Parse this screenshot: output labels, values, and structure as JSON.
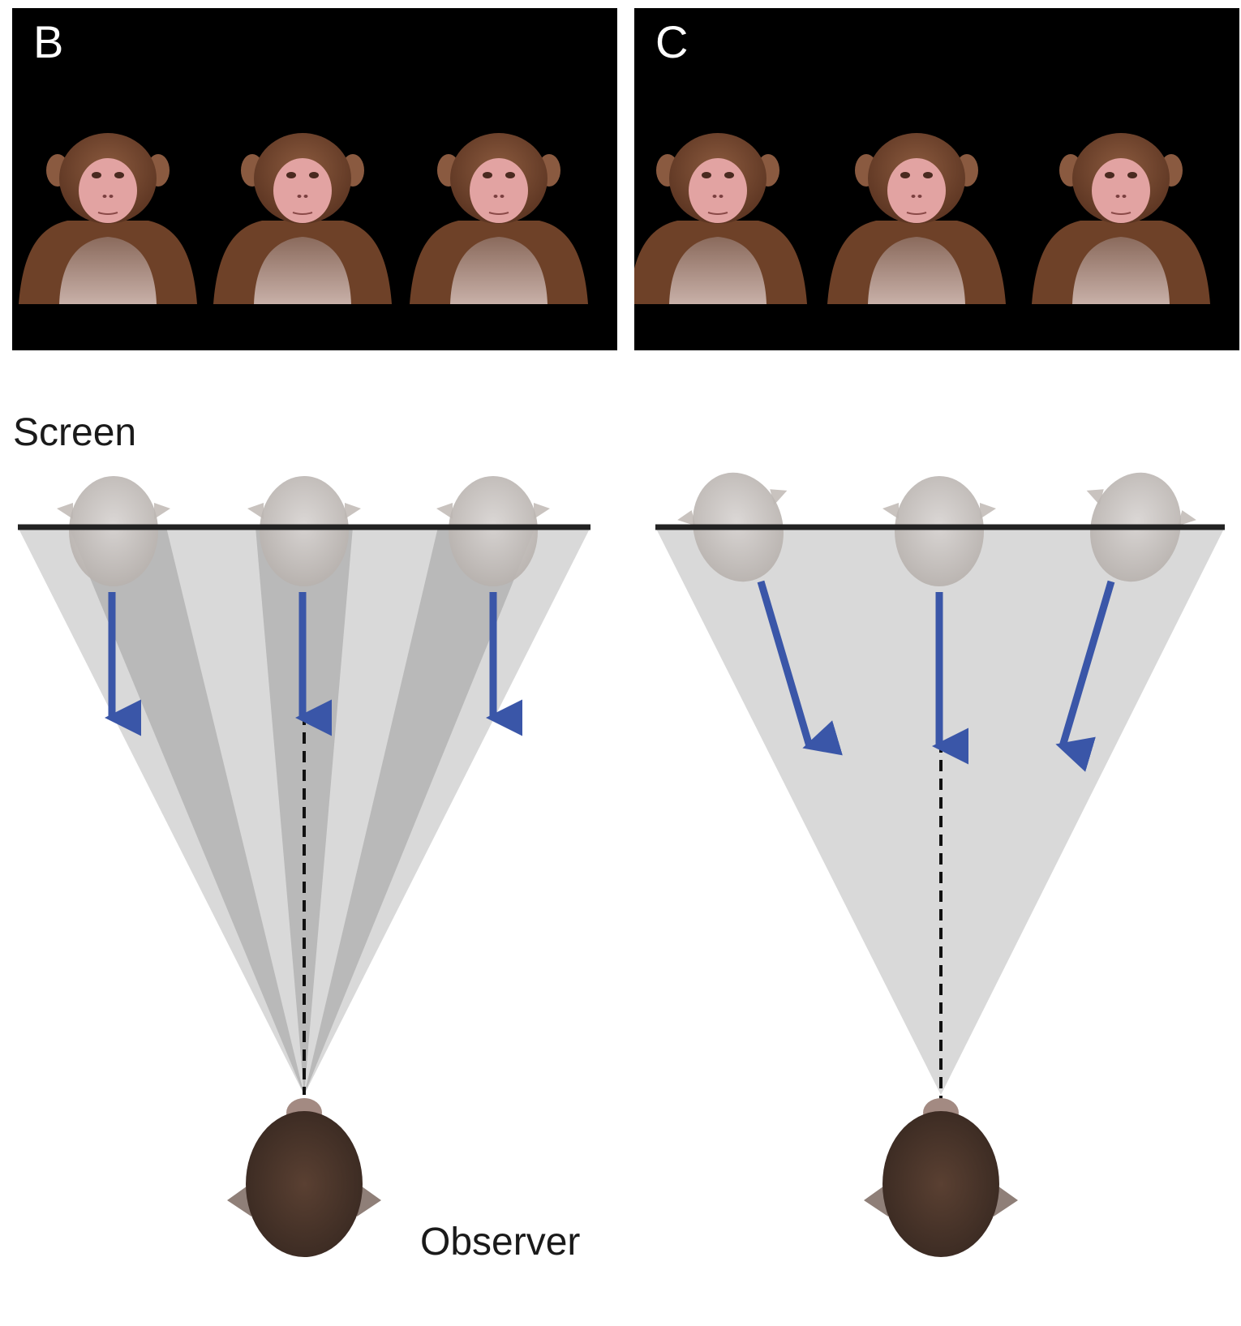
{
  "panels": [
    {
      "letter": "B"
    },
    {
      "letter": "C"
    }
  ],
  "labels": {
    "screen": "Screen",
    "observer": "Observer"
  },
  "colors": {
    "panel_background": "#000000",
    "gaze_arrow": "#3a56a8",
    "cone_light": "#d9d9d9",
    "cone_dark": "#b9b9b9",
    "screen_line": "#222222",
    "monkey_fur": "#7a4a34",
    "monkey_face": "#e6a9a6",
    "observer_fur": "#4a342a"
  }
}
